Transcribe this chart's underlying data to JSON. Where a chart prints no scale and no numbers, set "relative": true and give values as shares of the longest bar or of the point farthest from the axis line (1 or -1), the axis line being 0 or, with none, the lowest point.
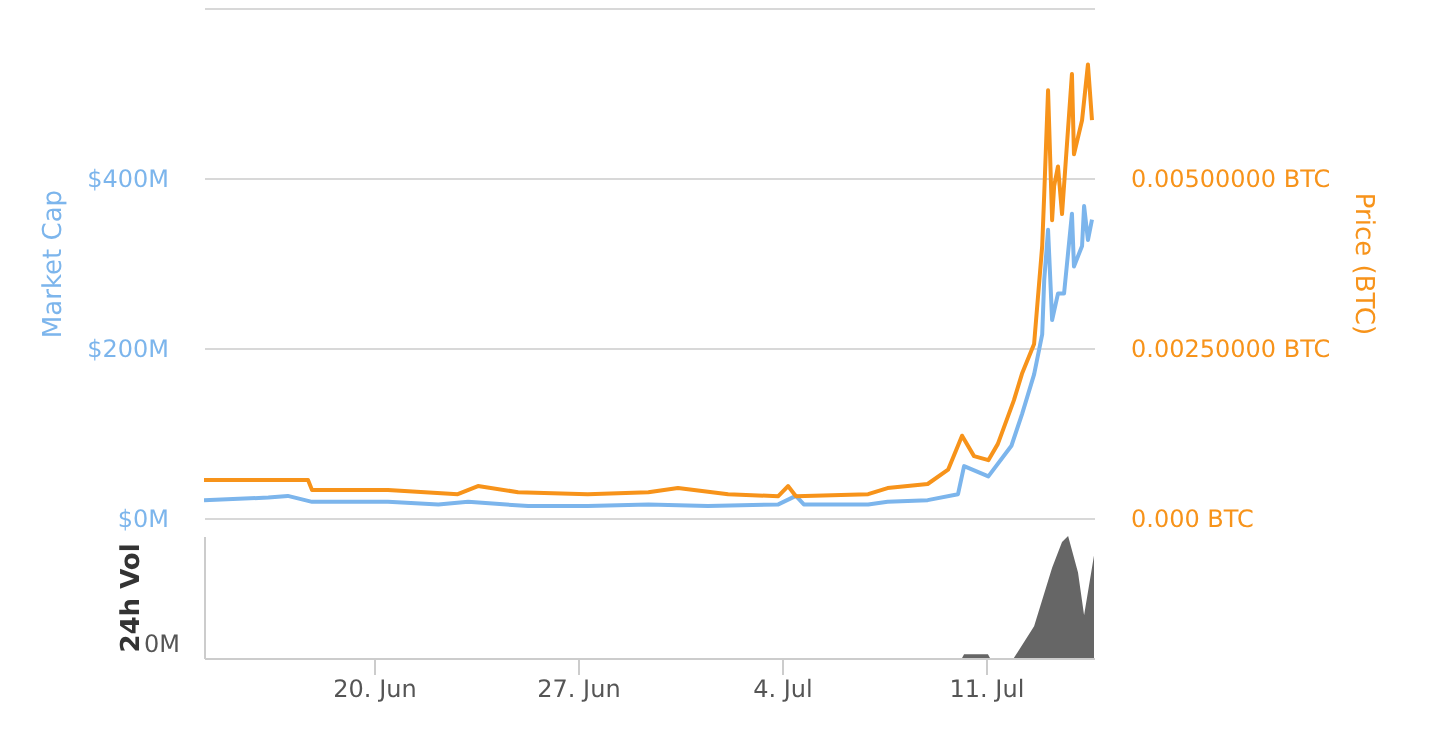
{
  "chart_data": [
    {
      "type": "line",
      "xlim": [
        "--06-14T04:00",
        "--07-14T17:00"
      ],
      "ylim": [
        0,
        600
      ],
      "yticks": [
        {
          "value": 0,
          "label": "$0M"
        },
        {
          "value": 200,
          "label": "$200M"
        },
        {
          "value": 400,
          "label": "$400M"
        },
        {
          "value": 600,
          "label": null
        }
      ],
      "y2lim": [
        0,
        0.0075
      ],
      "y2ticks": [
        {
          "value": 0,
          "label": "0.000 BTC"
        },
        {
          "value": 0.0025,
          "label": "0.00250000 BTC"
        },
        {
          "value": 0.005,
          "label": "0.00500000 BTC"
        },
        {
          "value": 0.0075,
          "label": null
        }
      ],
      "ylabel": "Market Cap",
      "y2label": "Price (BTC)",
      "grid": "y",
      "tick_labels": "y",
      "series": [
        {
          "color": "#7cb5ec",
          "x": [
            "--06-14T04:00",
            "--06-16T09:00",
            "--06-17T01:00",
            "--06-17T21:00",
            "--06-20T11:30",
            "--06-22T05:00",
            "--06-23T05:30",
            "--06-25T07:00",
            "--06-27T08:00",
            "--06-29T10:00",
            "--07-01T11:00",
            "--07-03T21:00",
            "--07-04T11:30",
            "--07-04T18:00",
            "--07-06T23:00",
            "--07-07T15:00",
            "--07-09T00:00",
            "--07-10T01:00",
            "--07-10T06:00",
            "--07-11T02:00",
            "--07-11T21:00",
            "--07-12T05:40",
            "--07-12T15:40",
            "--07-12T22:20",
            "--07-13T00:00",
            "--07-13T03:10",
            "--07-13T06:30",
            "--07-13T11:20",
            "--07-13T16:20",
            "--07-13T22:50",
            "--07-14T00:30",
            "--07-14T07:10",
            "--07-14T08:50",
            "--07-14T12:00",
            "--07-14T15:20"
          ],
          "values": [
            21,
            24,
            26,
            19,
            19,
            16,
            19,
            14,
            14,
            16,
            14,
            16,
            26,
            16,
            16,
            19,
            21,
            28,
            61,
            49,
            85,
            122,
            169,
            216,
            280,
            339,
            233,
            264,
            264,
            358,
            296,
            320,
            367,
            327,
            351
          ]
        },
        {
          "color": "#f7931a",
          "axis": "y2",
          "x": [
            "--06-14T04:00",
            "--06-16T09:00",
            "--06-17T17:40",
            "--06-17T21:00",
            "--06-20T11:30",
            "--06-22T21:00",
            "--06-23T13:40",
            "--06-24T22:40",
            "--06-27T08:00",
            "--06-29T10:00",
            "--06-30T10:20",
            "--07-02T03:40",
            "--07-03T21:00",
            "--07-04T05:00",
            "--07-04T11:30",
            "--07-06T23:00",
            "--07-07T15:00",
            "--07-09T00:00",
            "--07-09T16:50",
            "--07-10T04:20",
            "--07-10T14:10",
            "--07-11T02:00",
            "--07-11T09:50",
            "--07-11T23:00",
            "--07-12T05:40",
            "--07-12T15:40",
            "--07-12T22:20",
            "--07-13T00:00",
            "--07-13T03:10",
            "--07-13T06:30",
            "--07-13T08:10",
            "--07-13T11:20",
            "--07-13T14:40",
            "--07-13T22:50",
            "--07-14T00:30",
            "--07-14T07:10",
            "--07-14T12:00",
            "--07-14T15:20"
          ],
          "values": [
            0.00056,
            0.00056,
            0.00056,
            0.00041,
            0.00041,
            0.00035,
            0.00047,
            0.00038,
            0.00035,
            0.00038,
            0.00044,
            0.00035,
            0.00032,
            0.00047,
            0.00032,
            0.00035,
            0.00044,
            0.0005,
            0.00071,
            0.00121,
            0.00091,
            0.00085,
            0.00109,
            0.00173,
            0.00212,
            0.00256,
            0.004,
            0.00476,
            0.00629,
            0.00438,
            0.00488,
            0.00517,
            0.00447,
            0.00653,
            0.00535,
            0.00585,
            0.00667,
            0.00585
          ]
        }
      ]
    },
    {
      "type": "area",
      "relative": true,
      "xlim": [
        "--06-14T04:00",
        "--07-14T17:00"
      ],
      "xticks": [
        {
          "value": "--06-20",
          "label": "20. Jun"
        },
        {
          "value": "--06-27",
          "label": "27. Jun"
        },
        {
          "value": "--07-04",
          "label": "4. Jul"
        },
        {
          "value": "--07-11",
          "label": "11. Jul"
        }
      ],
      "ylabel": "24h Vol",
      "tick_labels": "x",
      "annotations": [
        "0M"
      ],
      "series": [
        {
          "color": "#666666",
          "x": [
            "--06-14T04:00",
            "--07-10T04:20",
            "--07-10T06:00",
            "--07-11T01:40",
            "--07-11T03:20",
            "--07-11T23:00",
            "--07-12T15:40",
            "--07-13T06:30",
            "--07-13T14:40",
            "--07-13T19:40",
            "--07-14T03:50",
            "--07-14T08:50",
            "--07-14T17:00"
          ],
          "values": [
            0,
            0,
            0.03,
            0.03,
            0,
            0,
            0.26,
            0.74,
            0.95,
            1,
            0.7,
            0.35,
            0.84
          ]
        }
      ]
    }
  ]
}
